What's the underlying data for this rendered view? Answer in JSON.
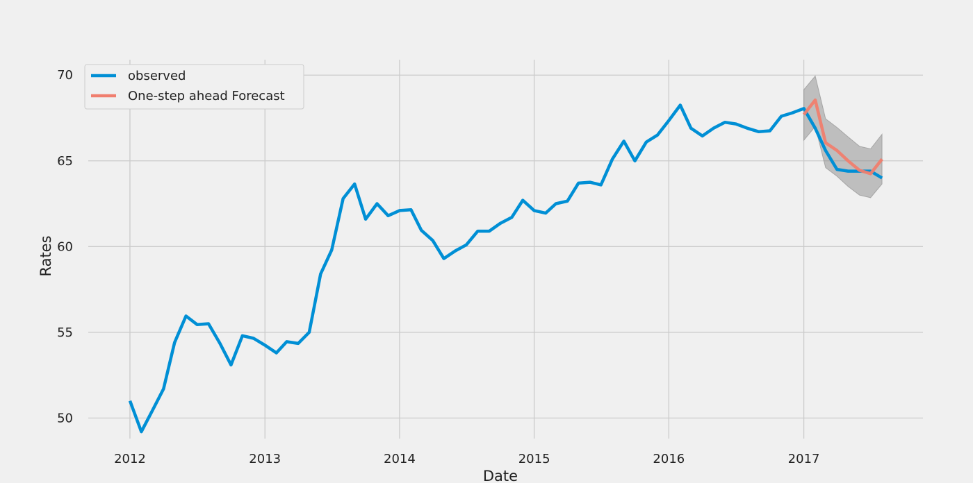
{
  "chart_data": {
    "type": "line",
    "title": "",
    "xlabel": "Date",
    "ylabel": "Rates",
    "xlim": [
      "2011-09-10",
      "2017-11-20"
    ],
    "ylim": [
      48.8,
      70.9
    ],
    "x_ticks": [
      "2012-01-01",
      "2013-01-01",
      "2014-01-01",
      "2015-01-01",
      "2016-01-01",
      "2017-01-01"
    ],
    "x_tick_labels": [
      "2012",
      "2013",
      "2014",
      "2015",
      "2016",
      "2017"
    ],
    "y_ticks": [
      50,
      55,
      60,
      65,
      70
    ],
    "y_tick_labels": [
      "50",
      "55",
      "60",
      "65",
      "70"
    ],
    "grid": true,
    "legend_position": "upper-left",
    "series": [
      {
        "name": "observed",
        "color": "#008fd5",
        "x": [
          "2012-01-01",
          "2012-02-01",
          "2012-03-01",
          "2012-04-01",
          "2012-05-01",
          "2012-06-01",
          "2012-07-01",
          "2012-08-01",
          "2012-09-01",
          "2012-10-01",
          "2012-11-01",
          "2012-12-01",
          "2013-01-01",
          "2013-02-01",
          "2013-03-01",
          "2013-04-01",
          "2013-05-01",
          "2013-06-01",
          "2013-07-01",
          "2013-08-01",
          "2013-09-01",
          "2013-10-01",
          "2013-11-01",
          "2013-12-01",
          "2014-01-01",
          "2014-02-01",
          "2014-03-01",
          "2014-04-01",
          "2014-05-01",
          "2014-06-01",
          "2014-07-01",
          "2014-08-01",
          "2014-09-01",
          "2014-10-01",
          "2014-11-01",
          "2014-12-01",
          "2015-01-01",
          "2015-02-01",
          "2015-03-01",
          "2015-04-01",
          "2015-05-01",
          "2015-06-01",
          "2015-07-01",
          "2015-08-01",
          "2015-09-01",
          "2015-10-01",
          "2015-11-01",
          "2015-12-01",
          "2016-01-01",
          "2016-02-01",
          "2016-03-01",
          "2016-04-01",
          "2016-05-01",
          "2016-06-01",
          "2016-07-01",
          "2016-08-01",
          "2016-09-01",
          "2016-10-01",
          "2016-11-01",
          "2016-12-01",
          "2017-01-01",
          "2017-02-01",
          "2017-03-01",
          "2017-04-01",
          "2017-05-01",
          "2017-06-01",
          "2017-07-01",
          "2017-08-01"
        ],
        "values": [
          51.0,
          49.2,
          50.4,
          51.7,
          54.4,
          55.95,
          55.45,
          55.5,
          54.35,
          53.1,
          54.8,
          54.65,
          54.25,
          53.8,
          54.45,
          54.35,
          55.0,
          58.4,
          59.8,
          62.8,
          63.65,
          61.6,
          62.5,
          61.8,
          62.1,
          62.15,
          60.95,
          60.35,
          59.3,
          59.75,
          60.1,
          60.9,
          60.9,
          61.35,
          61.7,
          62.7,
          62.1,
          61.95,
          62.5,
          62.65,
          63.7,
          63.75,
          63.6,
          65.1,
          66.15,
          65.0,
          66.1,
          66.5,
          67.35,
          68.25,
          66.9,
          66.45,
          66.9,
          67.25,
          67.15,
          66.9,
          66.7,
          66.75,
          67.6,
          67.8,
          68.05,
          66.9,
          65.6,
          64.5,
          64.4,
          64.4,
          64.4,
          64.0
        ]
      },
      {
        "name": "One-step ahead Forecast",
        "color": "#f07e6e",
        "x": [
          "2017-01-01",
          "2017-02-01",
          "2017-03-01",
          "2017-04-01",
          "2017-05-01",
          "2017-06-01",
          "2017-07-01",
          "2017-08-01"
        ],
        "values": [
          67.7,
          68.55,
          66.05,
          65.6,
          65.0,
          64.45,
          64.25,
          65.1
        ],
        "lower": [
          66.2,
          67.0,
          64.6,
          64.1,
          63.5,
          63.0,
          62.85,
          63.65
        ],
        "upper": [
          69.15,
          69.95,
          67.45,
          66.95,
          66.4,
          65.85,
          65.7,
          66.55
        ]
      }
    ]
  }
}
